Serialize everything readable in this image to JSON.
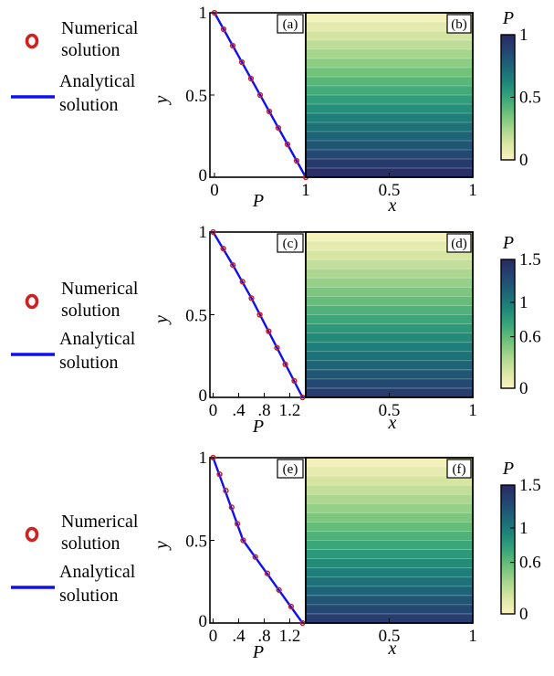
{
  "legend": {
    "numerical_line1": "Numerical",
    "numerical_line2": "solution",
    "analytical_line1": "Analytical",
    "analytical_line2": "solution",
    "marker_color": "#cc2222",
    "line_color": "#1010ee"
  },
  "colormap": [
    "#fbf3c0",
    "#d9e6a4",
    "#a6d58e",
    "#6cc07a",
    "#37a47a",
    "#1e8479",
    "#1d6477",
    "#244471",
    "#2a2a63"
  ],
  "chart_data": [
    {
      "type": "line",
      "panel_label": "(a)",
      "xlabel": "P",
      "ylabel": "y",
      "xticks": [
        "0",
        "1"
      ],
      "yticks": [
        "0",
        "0.5",
        "1"
      ],
      "xlim": [
        -0.05,
        1.0
      ],
      "ylim": [
        0,
        1
      ],
      "series": [
        {
          "name": "Numerical solution",
          "x": [
            1.0,
            0.9,
            0.8,
            0.7,
            0.6,
            0.5,
            0.4,
            0.3,
            0.2,
            0.1,
            0.0
          ],
          "y": [
            0,
            0.1,
            0.2,
            0.3,
            0.4,
            0.5,
            0.6,
            0.7,
            0.8,
            0.9,
            1.0
          ]
        },
        {
          "name": "Analytical solution",
          "x": [
            1.0,
            0.0
          ],
          "y": [
            0,
            1.0
          ]
        }
      ]
    },
    {
      "type": "heatmap",
      "panel_label": "(b)",
      "xlabel": "x",
      "xticks": [
        "0.5",
        "1"
      ],
      "colorbar_title": "P",
      "colorbar_ticks": [
        "0",
        "0.5",
        "1"
      ],
      "colorbar_range": [
        0,
        1
      ],
      "bands": 18,
      "p_top": 0.0,
      "p_bottom": 1.0
    },
    {
      "type": "line",
      "panel_label": "(c)",
      "xlabel": "P",
      "ylabel": "y",
      "xticks": [
        "0",
        ".4",
        ".8",
        "1.2"
      ],
      "yticks": [
        "0",
        "0.5",
        "1"
      ],
      "xlim": [
        -0.05,
        1.45
      ],
      "ylim": [
        0,
        1
      ],
      "series": [
        {
          "name": "Numerical solution",
          "x": [
            1.4,
            1.27,
            1.13,
            1.0,
            0.87,
            0.73,
            0.6,
            0.46,
            0.31,
            0.16,
            0.0
          ],
          "y": [
            0,
            0.1,
            0.2,
            0.3,
            0.4,
            0.5,
            0.6,
            0.7,
            0.8,
            0.9,
            1.0
          ]
        },
        {
          "name": "Analytical solution",
          "x": [
            1.4,
            1.0,
            0.6,
            0.31,
            0.0
          ],
          "y": [
            0,
            0.3,
            0.6,
            0.8,
            1.0
          ]
        }
      ]
    },
    {
      "type": "heatmap",
      "panel_label": "(d)",
      "xlabel": "x",
      "xticks": [
        "0.5",
        "1"
      ],
      "colorbar_title": "P",
      "colorbar_ticks": [
        "0",
        "0.6",
        "1",
        "1.5"
      ],
      "colorbar_range": [
        0,
        1.5
      ],
      "bands": 18,
      "p_top": 0.0,
      "p_bottom": 1.4
    },
    {
      "type": "line",
      "panel_label": "(e)",
      "xlabel": "P",
      "ylabel": "y",
      "xticks": [
        "0",
        ".4",
        ".8",
        "1.2"
      ],
      "yticks": [
        "0",
        "0.5",
        "1"
      ],
      "xlim": [
        -0.05,
        1.45
      ],
      "ylim": [
        0,
        1
      ],
      "series": [
        {
          "name": "Numerical solution",
          "x": [
            1.4,
            1.22,
            1.03,
            0.85,
            0.66,
            0.47,
            0.38,
            0.29,
            0.2,
            0.1,
            0.0
          ],
          "y": [
            0,
            0.1,
            0.2,
            0.3,
            0.4,
            0.5,
            0.6,
            0.7,
            0.8,
            0.9,
            1.0
          ]
        },
        {
          "name": "Analytical solution",
          "x": [
            1.4,
            0.47,
            0.0
          ],
          "y": [
            0,
            0.5,
            1.0
          ]
        }
      ]
    },
    {
      "type": "heatmap",
      "panel_label": "(f)",
      "xlabel": "x",
      "xticks": [
        "0.5",
        "1"
      ],
      "colorbar_title": "P",
      "colorbar_ticks": [
        "0",
        "0.6",
        "1",
        "1.5"
      ],
      "colorbar_range": [
        0,
        1.5
      ],
      "bands": 18,
      "p_top": 0.0,
      "p_bottom": 1.4
    }
  ]
}
